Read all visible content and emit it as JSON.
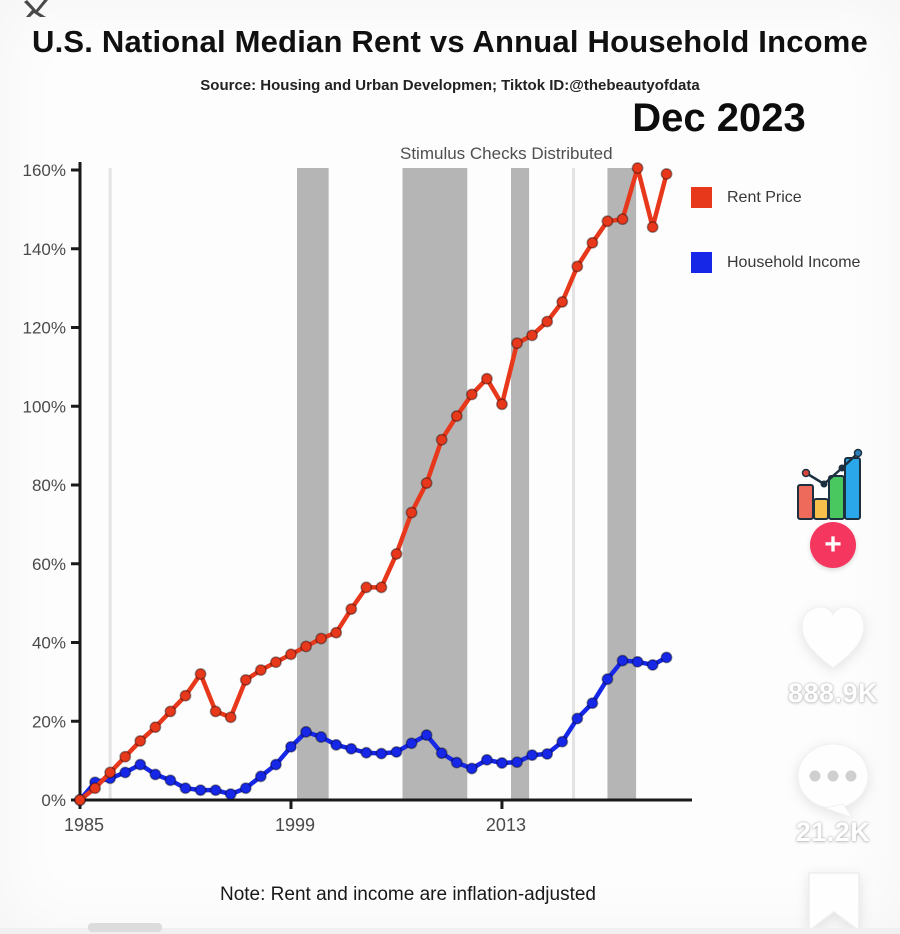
{
  "page": {
    "title": "U.S. National Median Rent vs Annual Household Income",
    "source_line": "Source: Housing and Urban Developmen;  Tiktok ID:@thebeautyofdata",
    "date_label": "Dec 2023",
    "note": "Note: Rent and income are inflation-adjusted"
  },
  "chart_data": {
    "type": "line",
    "title": "U.S. National Median Rent vs Annual Household Income",
    "annotation": "Stimulus Checks Distributed",
    "xlabel": "",
    "ylabel": "",
    "xlim": [
      1985,
      2025.5
    ],
    "ylim": [
      0,
      160
    ],
    "grid": false,
    "legend_position": "right",
    "x_ticks": [
      {
        "value": 1985,
        "label": "1985"
      },
      {
        "value": 1999,
        "label": "1999"
      },
      {
        "value": 2013,
        "label": "2013"
      }
    ],
    "y_ticks": [
      {
        "value": 0,
        "label": "0%"
      },
      {
        "value": 20,
        "label": "20%"
      },
      {
        "value": 40,
        "label": "40%"
      },
      {
        "value": 60,
        "label": "60%"
      },
      {
        "value": 80,
        "label": "80%"
      },
      {
        "value": 100,
        "label": "100%"
      },
      {
        "value": 120,
        "label": "120%"
      },
      {
        "value": 140,
        "label": "140%"
      },
      {
        "value": 160,
        "label": "160%"
      }
    ],
    "series": [
      {
        "name": "Household Income",
        "color": "#1627e8",
        "points": [
          [
            1985,
            0
          ],
          [
            1986,
            4.5
          ],
          [
            1987,
            5.5
          ],
          [
            1988,
            7
          ],
          [
            1989,
            9
          ],
          [
            1990,
            6.5
          ],
          [
            1991,
            5
          ],
          [
            1992,
            3
          ],
          [
            1993,
            2.5
          ],
          [
            1994,
            2.5
          ],
          [
            1995,
            1.5
          ],
          [
            1996,
            3
          ],
          [
            1997,
            6
          ],
          [
            1998,
            9
          ],
          [
            1999,
            13.5
          ],
          [
            2000,
            17.3
          ],
          [
            2001,
            16
          ],
          [
            2002,
            14
          ],
          [
            2003,
            13
          ],
          [
            2004,
            12
          ],
          [
            2005,
            11.8
          ],
          [
            2006,
            12.2
          ],
          [
            2007,
            14.4
          ],
          [
            2008,
            16.5
          ],
          [
            2009,
            11.9
          ],
          [
            2010,
            9.5
          ],
          [
            2011,
            8
          ],
          [
            2012,
            10.2
          ],
          [
            2013,
            9.4
          ],
          [
            2014,
            9.6
          ],
          [
            2015,
            11.4
          ],
          [
            2016,
            11.7
          ],
          [
            2017,
            14.8
          ],
          [
            2018,
            20.7
          ],
          [
            2019,
            24.6
          ],
          [
            2020,
            30.7
          ],
          [
            2021,
            35.4
          ],
          [
            2022,
            35.1
          ],
          [
            2023,
            34.3
          ],
          [
            2023.92,
            36.2
          ]
        ]
      },
      {
        "name": "Rent Price",
        "color": "#e8381c",
        "points": [
          [
            1985,
            0
          ],
          [
            1986,
            3
          ],
          [
            1987,
            7
          ],
          [
            1988,
            11
          ],
          [
            1989,
            15
          ],
          [
            1990,
            18.5
          ],
          [
            1991,
            22.5
          ],
          [
            1992,
            26.5
          ],
          [
            1993,
            32
          ],
          [
            1994,
            22.5
          ],
          [
            1995,
            21
          ],
          [
            1996,
            30.5
          ],
          [
            1997,
            33
          ],
          [
            1998,
            35
          ],
          [
            1999,
            37
          ],
          [
            2000,
            39
          ],
          [
            2001,
            41
          ],
          [
            2002,
            42.5
          ],
          [
            2003,
            48.5
          ],
          [
            2004,
            54
          ],
          [
            2005,
            54
          ],
          [
            2006,
            62.5
          ],
          [
            2007,
            73
          ],
          [
            2008,
            80.5
          ],
          [
            2009,
            91.5
          ],
          [
            2010,
            97.5
          ],
          [
            2011,
            103
          ],
          [
            2012,
            107
          ],
          [
            2013,
            100.5
          ],
          [
            2014,
            116
          ],
          [
            2015,
            118
          ],
          [
            2016,
            121.5
          ],
          [
            2017,
            126.5
          ],
          [
            2018,
            135.5
          ],
          [
            2019,
            141.5
          ],
          [
            2020,
            147
          ],
          [
            2021,
            147.5
          ],
          [
            2022,
            160.5
          ],
          [
            2023,
            145.5
          ],
          [
            2023.92,
            159
          ]
        ]
      }
    ],
    "recession_bands": {
      "color": "#b5b5b5",
      "ranges": [
        [
          1999.4,
          2001.5
        ],
        [
          2006.4,
          2010.7
        ],
        [
          2013.6,
          2014.8
        ],
        [
          2020.0,
          2021.9
        ]
      ]
    },
    "faint_lines": {
      "color": "#e3e3e3",
      "years": [
        1987.0,
        2017.75
      ]
    },
    "axis_color": "#1a1a1a",
    "tick_label_color": "#4a4a4a"
  },
  "legend": {
    "rent_label": "Rent Price",
    "income_label": "Household Income"
  },
  "tiktok_rail": {
    "follow_button": "+",
    "like_count": "888.9K",
    "comment_count": "21.2K",
    "accent_pink": "#f5365f"
  }
}
